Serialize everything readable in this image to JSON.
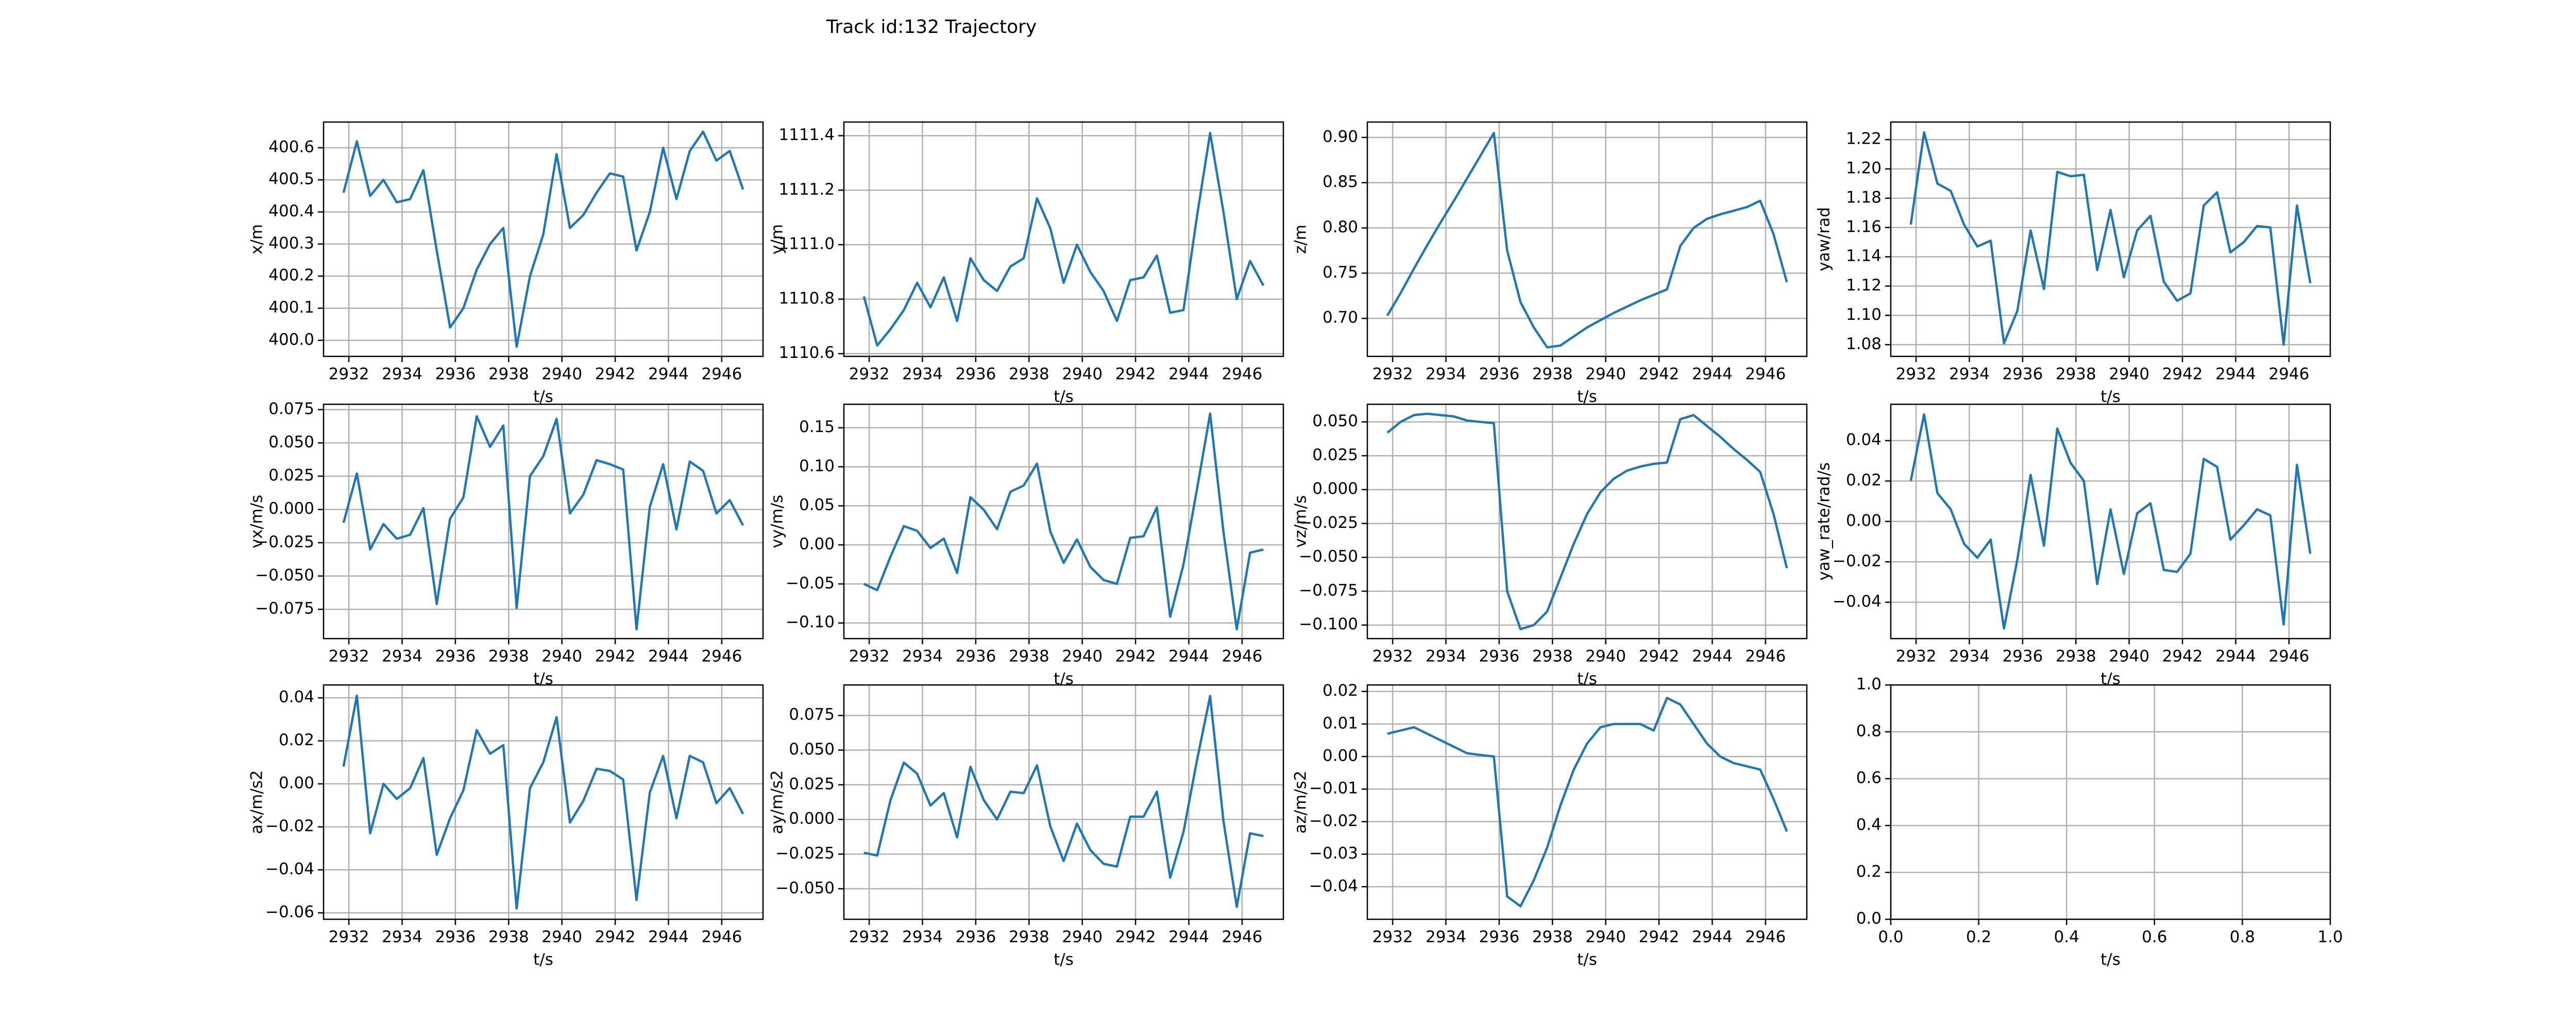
{
  "title": "Track id:132 Trajectory",
  "chart_data": [
    {
      "type": "line",
      "xlabel": "t/s",
      "ylabel": "x/m",
      "color": "#1f77b4",
      "grid": true,
      "x": [
        2931.8,
        2932.3,
        2932.8,
        2933.3,
        2933.8,
        2934.3,
        2934.8,
        2935.3,
        2935.8,
        2936.3,
        2936.8,
        2937.3,
        2937.8,
        2938.3,
        2938.8,
        2939.3,
        2939.8,
        2940.3,
        2940.8,
        2941.3,
        2941.8,
        2942.3,
        2942.8,
        2943.3,
        2943.8,
        2944.3,
        2944.8,
        2945.3,
        2945.8,
        2946.3,
        2946.8
      ],
      "values": [
        400.46,
        400.62,
        400.45,
        400.5,
        400.43,
        400.44,
        400.53,
        400.28,
        400.04,
        400.1,
        400.22,
        400.3,
        400.35,
        399.98,
        400.2,
        400.33,
        400.58,
        400.35,
        400.39,
        400.46,
        400.52,
        400.51,
        400.28,
        400.4,
        400.6,
        400.44,
        400.59,
        400.65,
        400.56,
        400.59,
        400.47
      ],
      "xlim": [
        2931.05,
        2947.55
      ],
      "xticks": [
        2932,
        2934,
        2936,
        2938,
        2940,
        2942,
        2944,
        2946
      ],
      "ylim": [
        399.95,
        400.68
      ],
      "yticks": [
        {
          "value": 400,
          "label": "400.0"
        },
        400.1,
        400.2,
        400.3,
        400.4,
        400.5,
        400.6
      ]
    },
    {
      "type": "line",
      "xlabel": "t/s",
      "ylabel": "y/m",
      "color": "#1f77b4",
      "grid": true,
      "x": [
        2931.8,
        2932.3,
        2932.8,
        2933.3,
        2933.8,
        2934.3,
        2934.8,
        2935.3,
        2935.8,
        2936.3,
        2936.8,
        2937.3,
        2937.8,
        2938.3,
        2938.8,
        2939.3,
        2939.8,
        2940.3,
        2940.8,
        2941.3,
        2941.8,
        2942.3,
        2942.8,
        2943.3,
        2943.8,
        2944.3,
        2944.8,
        2945.3,
        2945.8,
        2946.3,
        2946.8
      ],
      "values": [
        1110.81,
        1110.63,
        1110.69,
        1110.76,
        1110.86,
        1110.77,
        1110.88,
        1110.72,
        1110.95,
        1110.87,
        1110.83,
        1110.92,
        1110.95,
        1111.17,
        1111.06,
        1110.86,
        1111.0,
        1110.9,
        1110.83,
        1110.72,
        1110.87,
        1110.88,
        1110.96,
        1110.75,
        1110.76,
        1111.1,
        1111.41,
        1111.12,
        1110.8,
        1110.94,
        1110.85
      ],
      "xlim": [
        2931.05,
        2947.55
      ],
      "xticks": [
        2932,
        2934,
        2936,
        2938,
        2940,
        2942,
        2944,
        2946
      ],
      "ylim": [
        1110.59,
        1111.45
      ],
      "yticks": [
        1110.6,
        1110.8,
        {
          "value": 1111,
          "label": "1111.0"
        },
        1111.2,
        1111.4
      ]
    },
    {
      "type": "line",
      "xlabel": "t/s",
      "ylabel": "z/m",
      "color": "#1f77b4",
      "grid": true,
      "x": [
        2931.8,
        2932.3,
        2932.8,
        2933.3,
        2933.8,
        2934.3,
        2934.8,
        2935.3,
        2935.8,
        2936.3,
        2936.8,
        2937.3,
        2937.8,
        2938.3,
        2938.8,
        2939.3,
        2939.8,
        2940.3,
        2940.8,
        2941.3,
        2941.8,
        2942.3,
        2942.8,
        2943.3,
        2943.8,
        2944.3,
        2944.8,
        2945.3,
        2945.8,
        2946.3,
        2946.8
      ],
      "values": [
        0.703,
        0.728,
        0.755,
        0.781,
        0.806,
        0.83,
        0.855,
        0.88,
        0.905,
        0.775,
        0.718,
        0.69,
        0.668,
        0.67,
        0.68,
        0.69,
        0.698,
        0.706,
        0.713,
        0.72,
        0.726,
        0.732,
        0.78,
        0.8,
        0.81,
        0.815,
        0.819,
        0.823,
        0.83,
        0.793,
        0.74
      ],
      "xlim": [
        2931.05,
        2947.55
      ],
      "xticks": [
        2932,
        2934,
        2936,
        2938,
        2940,
        2942,
        2944,
        2946
      ],
      "ylim": [
        0.658,
        0.917
      ],
      "yticks": [
        {
          "value": 0.7,
          "label": "0.70"
        },
        0.75,
        {
          "value": 0.8,
          "label": "0.80"
        },
        0.85,
        {
          "value": 0.9,
          "label": "0.90"
        }
      ]
    },
    {
      "type": "line",
      "xlabel": "t/s",
      "ylabel": "yaw/rad",
      "color": "#1f77b4",
      "grid": true,
      "x": [
        2931.8,
        2932.3,
        2932.8,
        2933.3,
        2933.8,
        2934.3,
        2934.8,
        2935.3,
        2935.8,
        2936.3,
        2936.8,
        2937.3,
        2937.8,
        2938.3,
        2938.8,
        2939.3,
        2939.8,
        2940.3,
        2940.8,
        2941.3,
        2941.8,
        2942.3,
        2942.8,
        2943.3,
        2943.8,
        2944.3,
        2944.8,
        2945.3,
        2945.8,
        2946.3,
        2946.8
      ],
      "values": [
        1.162,
        1.225,
        1.19,
        1.185,
        1.162,
        1.147,
        1.151,
        1.081,
        1.103,
        1.158,
        1.118,
        1.198,
        1.195,
        1.196,
        1.131,
        1.172,
        1.126,
        1.158,
        1.168,
        1.123,
        1.11,
        1.115,
        1.175,
        1.184,
        1.143,
        1.15,
        1.161,
        1.16,
        1.08,
        1.175,
        1.122
      ],
      "xlim": [
        2931.05,
        2947.55
      ],
      "xticks": [
        2932,
        2934,
        2936,
        2938,
        2940,
        2942,
        2944,
        2946
      ],
      "ylim": [
        1.072,
        1.232
      ],
      "yticks": [
        1.08,
        {
          "value": 1.1,
          "label": "1.10"
        },
        1.12,
        1.14,
        1.16,
        1.18,
        {
          "value": 1.2,
          "label": "1.20"
        },
        1.22
      ]
    },
    {
      "type": "line",
      "xlabel": "t/s",
      "ylabel": "vx/m/s",
      "color": "#1f77b4",
      "grid": true,
      "x": [
        2931.8,
        2932.3,
        2932.8,
        2933.3,
        2933.8,
        2934.3,
        2934.8,
        2935.3,
        2935.8,
        2936.3,
        2936.8,
        2937.3,
        2937.8,
        2938.3,
        2938.8,
        2939.3,
        2939.8,
        2940.3,
        2940.8,
        2941.3,
        2941.8,
        2942.3,
        2942.8,
        2943.3,
        2943.8,
        2944.3,
        2944.8,
        2945.3,
        2945.8,
        2946.3,
        2946.8
      ],
      "values": [
        -0.01,
        0.027,
        -0.03,
        -0.011,
        -0.022,
        -0.019,
        0.001,
        -0.071,
        -0.007,
        0.009,
        0.07,
        0.047,
        0.063,
        -0.074,
        0.025,
        0.04,
        0.068,
        -0.003,
        0.011,
        0.037,
        0.034,
        0.03,
        -0.09,
        0.002,
        0.034,
        -0.015,
        0.036,
        0.029,
        -0.003,
        0.007,
        -0.012
      ],
      "xlim": [
        2931.05,
        2947.55
      ],
      "xticks": [
        2932,
        2934,
        2936,
        2938,
        2940,
        2942,
        2944,
        2946
      ],
      "ylim": [
        -0.097,
        0.079
      ],
      "yticks": [
        {
          "value": -0.075,
          "label": "−0.075"
        },
        {
          "value": -0.05,
          "label": "−0.050"
        },
        {
          "value": -0.025,
          "label": "−0.025"
        },
        {
          "value": 0,
          "label": "0.000"
        },
        0.025,
        {
          "value": 0.05,
          "label": "0.050"
        },
        0.075
      ]
    },
    {
      "type": "line",
      "xlabel": "t/s",
      "ylabel": "vy/m/s",
      "color": "#1f77b4",
      "grid": true,
      "x": [
        2931.8,
        2932.3,
        2932.8,
        2933.3,
        2933.8,
        2934.3,
        2934.8,
        2935.3,
        2935.8,
        2936.3,
        2936.8,
        2937.3,
        2937.8,
        2938.3,
        2938.8,
        2939.3,
        2939.8,
        2940.3,
        2940.8,
        2941.3,
        2941.8,
        2942.3,
        2942.8,
        2943.3,
        2943.8,
        2944.3,
        2944.8,
        2945.3,
        2945.8,
        2946.3,
        2946.8
      ],
      "values": [
        -0.05,
        -0.058,
        -0.015,
        0.024,
        0.018,
        -0.004,
        0.008,
        -0.036,
        0.061,
        0.045,
        0.02,
        0.068,
        0.076,
        0.104,
        0.017,
        -0.023,
        0.007,
        -0.028,
        -0.045,
        -0.05,
        0.009,
        0.011,
        0.048,
        -0.092,
        -0.025,
        0.07,
        0.168,
        0.017,
        -0.108,
        -0.01,
        -0.006
      ],
      "xlim": [
        2931.05,
        2947.55
      ],
      "xticks": [
        2932,
        2934,
        2936,
        2938,
        2940,
        2942,
        2944,
        2946
      ],
      "ylim": [
        -0.12,
        0.18
      ],
      "yticks": [
        {
          "value": -0.1,
          "label": "−0.10"
        },
        {
          "value": -0.05,
          "label": "−0.05"
        },
        {
          "value": 0,
          "label": "0.00"
        },
        0.05,
        {
          "value": 0.1,
          "label": "0.10"
        },
        0.15
      ]
    },
    {
      "type": "line",
      "xlabel": "t/s",
      "ylabel": "vz/m/s",
      "color": "#1f77b4",
      "grid": true,
      "x": [
        2931.8,
        2932.3,
        2932.8,
        2933.3,
        2933.8,
        2934.3,
        2934.8,
        2935.3,
        2935.8,
        2936.3,
        2936.8,
        2937.3,
        2937.8,
        2938.3,
        2938.8,
        2939.3,
        2939.8,
        2940.3,
        2940.8,
        2941.3,
        2941.8,
        2942.3,
        2942.8,
        2943.3,
        2943.8,
        2944.3,
        2944.8,
        2945.3,
        2945.8,
        2946.3,
        2946.8
      ],
      "values": [
        0.042,
        0.05,
        0.055,
        0.056,
        0.055,
        0.054,
        0.051,
        0.05,
        0.049,
        -0.075,
        -0.103,
        -0.1,
        -0.09,
        -0.065,
        -0.04,
        -0.018,
        -0.002,
        0.008,
        0.014,
        0.017,
        0.019,
        0.02,
        0.052,
        0.055,
        0.047,
        0.039,
        0.03,
        0.022,
        0.013,
        -0.018,
        -0.058
      ],
      "xlim": [
        2931.05,
        2947.55
      ],
      "xticks": [
        2932,
        2934,
        2936,
        2938,
        2940,
        2942,
        2944,
        2946
      ],
      "ylim": [
        -0.11,
        0.063
      ],
      "yticks": [
        {
          "value": -0.1,
          "label": "−0.100"
        },
        {
          "value": -0.075,
          "label": "−0.075"
        },
        {
          "value": -0.05,
          "label": "−0.050"
        },
        {
          "value": -0.025,
          "label": "−0.025"
        },
        {
          "value": 0,
          "label": "0.000"
        },
        0.025,
        {
          "value": 0.05,
          "label": "0.050"
        }
      ]
    },
    {
      "type": "line",
      "xlabel": "t/s",
      "ylabel": "yaw_rate/rad/s",
      "color": "#1f77b4",
      "grid": true,
      "x": [
        2931.8,
        2932.3,
        2932.8,
        2933.3,
        2933.8,
        2934.3,
        2934.8,
        2935.3,
        2935.8,
        2936.3,
        2936.8,
        2937.3,
        2937.8,
        2938.3,
        2938.8,
        2939.3,
        2939.8,
        2940.3,
        2940.8,
        2941.3,
        2941.8,
        2942.3,
        2942.8,
        2943.3,
        2943.8,
        2944.3,
        2944.8,
        2945.3,
        2945.8,
        2946.3,
        2946.8
      ],
      "values": [
        0.02,
        0.053,
        0.014,
        0.006,
        -0.011,
        -0.018,
        -0.009,
        -0.053,
        -0.019,
        0.023,
        -0.012,
        0.046,
        0.029,
        0.02,
        -0.031,
        0.006,
        -0.026,
        0.004,
        0.009,
        -0.024,
        -0.025,
        -0.016,
        0.031,
        0.027,
        -0.009,
        -0.002,
        0.006,
        0.003,
        -0.051,
        0.028,
        -0.016
      ],
      "xlim": [
        2931.05,
        2947.55
      ],
      "xticks": [
        2932,
        2934,
        2936,
        2938,
        2940,
        2942,
        2944,
        2946
      ],
      "ylim": [
        -0.058,
        0.058
      ],
      "yticks": [
        {
          "value": -0.04,
          "label": "−0.04"
        },
        {
          "value": -0.02,
          "label": "−0.02"
        },
        {
          "value": 0,
          "label": "0.00"
        },
        0.02,
        0.04
      ]
    },
    {
      "type": "line",
      "xlabel": "t/s",
      "ylabel": "ax/m/s2",
      "color": "#1f77b4",
      "grid": true,
      "x": [
        2931.8,
        2932.3,
        2932.8,
        2933.3,
        2933.8,
        2934.3,
        2934.8,
        2935.3,
        2935.8,
        2936.3,
        2936.8,
        2937.3,
        2937.8,
        2938.3,
        2938.8,
        2939.3,
        2939.8,
        2940.3,
        2940.8,
        2941.3,
        2941.8,
        2942.3,
        2942.8,
        2943.3,
        2943.8,
        2944.3,
        2944.8,
        2945.3,
        2945.8,
        2946.3,
        2946.8
      ],
      "values": [
        0.008,
        0.041,
        -0.023,
        0.0,
        -0.007,
        -0.002,
        0.012,
        -0.033,
        -0.016,
        -0.003,
        0.025,
        0.014,
        0.018,
        -0.058,
        -0.002,
        0.01,
        0.031,
        -0.018,
        -0.008,
        0.007,
        0.006,
        0.002,
        -0.054,
        -0.004,
        0.013,
        -0.016,
        0.013,
        0.01,
        -0.009,
        -0.002,
        -0.014
      ],
      "xlim": [
        2931.05,
        2947.55
      ],
      "xticks": [
        2932,
        2934,
        2936,
        2938,
        2940,
        2942,
        2944,
        2946
      ],
      "ylim": [
        -0.063,
        0.046
      ],
      "yticks": [
        {
          "value": -0.06,
          "label": "−0.06"
        },
        {
          "value": -0.04,
          "label": "−0.04"
        },
        {
          "value": -0.02,
          "label": "−0.02"
        },
        {
          "value": 0,
          "label": "0.00"
        },
        0.02,
        0.04
      ]
    },
    {
      "type": "line",
      "xlabel": "t/s",
      "ylabel": "ay/m/s2",
      "color": "#1f77b4",
      "grid": true,
      "x": [
        2931.8,
        2932.3,
        2932.8,
        2933.3,
        2933.8,
        2934.3,
        2934.8,
        2935.3,
        2935.8,
        2936.3,
        2936.8,
        2937.3,
        2937.8,
        2938.3,
        2938.8,
        2939.3,
        2939.8,
        2940.3,
        2940.8,
        2941.3,
        2941.8,
        2942.3,
        2942.8,
        2943.3,
        2943.8,
        2944.3,
        2944.8,
        2945.3,
        2945.8,
        2946.3,
        2946.8
      ],
      "values": [
        -0.024,
        -0.026,
        0.014,
        0.041,
        0.033,
        0.01,
        0.019,
        -0.013,
        0.038,
        0.014,
        0.0,
        0.02,
        0.019,
        0.039,
        -0.005,
        -0.03,
        -0.003,
        -0.022,
        -0.032,
        -0.034,
        0.002,
        0.002,
        0.02,
        -0.042,
        -0.009,
        0.042,
        0.089,
        -0.001,
        -0.063,
        -0.01,
        -0.012
      ],
      "xlim": [
        2931.05,
        2947.55
      ],
      "xticks": [
        2932,
        2934,
        2936,
        2938,
        2940,
        2942,
        2944,
        2946
      ],
      "ylim": [
        -0.072,
        0.097
      ],
      "yticks": [
        {
          "value": -0.05,
          "label": "−0.050"
        },
        {
          "value": -0.025,
          "label": "−0.025"
        },
        {
          "value": 0,
          "label": "0.000"
        },
        0.025,
        {
          "value": 0.05,
          "label": "0.050"
        },
        0.075
      ]
    },
    {
      "type": "line",
      "xlabel": "t/s",
      "ylabel": "az/m/s2",
      "color": "#1f77b4",
      "grid": true,
      "x": [
        2931.8,
        2932.3,
        2932.8,
        2933.3,
        2933.8,
        2934.3,
        2934.8,
        2935.3,
        2935.8,
        2936.3,
        2936.8,
        2937.3,
        2937.8,
        2938.3,
        2938.8,
        2939.3,
        2939.8,
        2940.3,
        2940.8,
        2941.3,
        2941.8,
        2942.3,
        2942.8,
        2943.3,
        2943.8,
        2944.3,
        2944.8,
        2945.3,
        2945.8,
        2946.3,
        2946.8
      ],
      "values": [
        0.007,
        0.008,
        0.009,
        0.007,
        0.005,
        0.003,
        0.001,
        0.0005,
        0.0,
        -0.043,
        -0.046,
        -0.038,
        -0.028,
        -0.015,
        -0.004,
        0.004,
        0.009,
        0.01,
        0.01,
        0.01,
        0.008,
        0.018,
        0.016,
        0.01,
        0.004,
        0.0,
        -0.002,
        -0.003,
        -0.004,
        -0.013,
        -0.023
      ],
      "xlim": [
        2931.05,
        2947.55
      ],
      "xticks": [
        2932,
        2934,
        2936,
        2938,
        2940,
        2942,
        2944,
        2946
      ],
      "ylim": [
        -0.05,
        0.022
      ],
      "yticks": [
        {
          "value": -0.04,
          "label": "−0.04"
        },
        {
          "value": -0.03,
          "label": "−0.03"
        },
        {
          "value": -0.02,
          "label": "−0.02"
        },
        {
          "value": -0.01,
          "label": "−0.01"
        },
        {
          "value": 0,
          "label": "0.00"
        },
        0.01,
        0.02
      ]
    },
    {
      "type": "line",
      "xlabel": "t/s",
      "grid": true,
      "xlim": [
        0,
        1
      ],
      "xticks": [
        {
          "value": 0,
          "label": "0.0"
        },
        0.2,
        0.4,
        0.6,
        0.8,
        {
          "value": 1,
          "label": "1.0"
        }
      ],
      "ylim": [
        0,
        1
      ],
      "yticks": [
        {
          "value": 0,
          "label": "0.0"
        },
        0.2,
        0.4,
        0.6,
        0.8,
        {
          "value": 1,
          "label": "1.0"
        }
      ]
    }
  ]
}
